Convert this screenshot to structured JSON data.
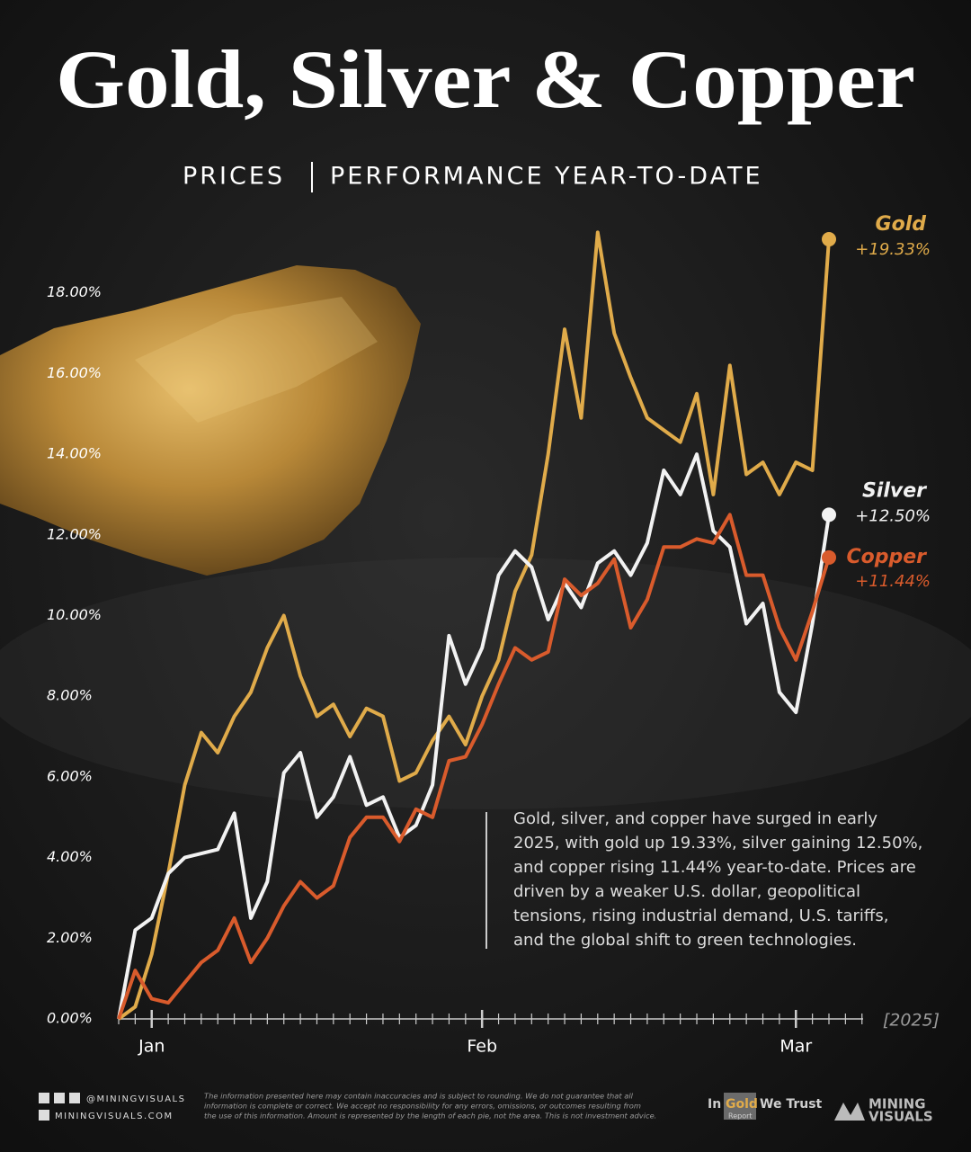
{
  "chart_data": {
    "type": "line",
    "title": "Gold, Silver & Copper",
    "subtitle": [
      "PRICES",
      "PERFORMANCE YEAR-TO-DATE"
    ],
    "categories": [
      null,
      null,
      "Jan",
      null,
      null,
      null,
      null,
      null,
      null,
      null,
      null,
      null,
      null,
      null,
      null,
      null,
      null,
      null,
      null,
      null,
      null,
      null,
      "Feb",
      null,
      null,
      null,
      null,
      null,
      null,
      null,
      null,
      null,
      null,
      null,
      null,
      null,
      null,
      null,
      null,
      null,
      null,
      "Mar",
      null,
      null
    ],
    "x_note": "[2025]",
    "ylim": [
      0,
      20
    ],
    "yticks": [
      {
        "value": 0,
        "label": "0.00%"
      },
      {
        "value": 2,
        "label": "2.00%"
      },
      {
        "value": 4,
        "label": "4.00%"
      },
      {
        "value": 6,
        "label": "6.00%"
      },
      {
        "value": 8,
        "label": "8.00%"
      },
      {
        "value": 10,
        "label": "10.00%"
      },
      {
        "value": 12,
        "label": "12.00%"
      },
      {
        "value": 14,
        "label": "14.00%"
      },
      {
        "value": 16,
        "label": "16.00%"
      },
      {
        "value": 18,
        "label": "18.00%"
      }
    ],
    "grid": false,
    "series": [
      {
        "name": "Gold",
        "color": "#e0ab4a",
        "values": [
          0,
          0.3,
          1.6,
          3.6,
          5.8,
          7.1,
          6.6,
          7.5,
          8.1,
          9.2,
          10.0,
          8.5,
          7.5,
          7.8,
          7.0,
          7.7,
          7.5,
          5.9,
          6.1,
          6.9,
          7.5,
          6.8,
          8.0,
          8.9,
          10.6,
          11.5,
          14.0,
          17.1,
          14.9,
          19.5,
          17.0,
          15.9,
          14.9,
          14.6,
          14.3,
          15.5,
          13.0,
          16.2,
          13.5,
          13.8,
          13.0,
          13.8,
          13.6,
          19.33
        ],
        "value_labels": [
          null,
          null,
          null,
          null,
          null,
          null,
          null,
          null,
          null,
          null,
          null,
          null,
          null,
          null,
          null,
          null,
          null,
          null,
          null,
          null,
          null,
          null,
          null,
          null,
          null,
          null,
          null,
          null,
          null,
          null,
          null,
          null,
          null,
          null,
          null,
          null,
          null,
          null,
          null,
          null,
          null,
          null,
          null,
          "+19.33%"
        ]
      },
      {
        "name": "Silver",
        "color": "#f2f2f2",
        "values": [
          0,
          2.2,
          2.5,
          3.6,
          4.0,
          4.1,
          4.2,
          5.1,
          2.5,
          3.4,
          6.1,
          6.6,
          5.0,
          5.5,
          6.5,
          5.3,
          5.5,
          4.5,
          4.8,
          5.8,
          9.5,
          8.3,
          9.2,
          11.0,
          11.6,
          11.2,
          9.9,
          10.8,
          10.2,
          11.3,
          11.6,
          11.0,
          11.8,
          13.6,
          13.0,
          14.0,
          12.1,
          11.7,
          9.8,
          10.3,
          8.1,
          7.6,
          9.8,
          12.5
        ],
        "value_labels": [
          null,
          null,
          null,
          null,
          null,
          null,
          null,
          null,
          null,
          null,
          null,
          null,
          null,
          null,
          null,
          null,
          null,
          null,
          null,
          null,
          null,
          null,
          null,
          null,
          null,
          null,
          null,
          null,
          null,
          null,
          null,
          null,
          null,
          null,
          null,
          null,
          null,
          null,
          null,
          null,
          null,
          null,
          null,
          "+12.50%"
        ]
      },
      {
        "name": "Copper",
        "color": "#d95b2c",
        "values": [
          0,
          1.2,
          0.5,
          0.4,
          0.9,
          1.4,
          1.7,
          2.5,
          1.4,
          2.0,
          2.8,
          3.4,
          3.0,
          3.3,
          4.5,
          5.0,
          5.0,
          4.4,
          5.2,
          5.0,
          6.4,
          6.5,
          7.3,
          8.3,
          9.2,
          8.9,
          9.1,
          10.9,
          10.5,
          10.8,
          11.4,
          9.7,
          10.4,
          11.7,
          11.7,
          11.9,
          11.8,
          12.5,
          11.0,
          11.0,
          9.7,
          8.9,
          10.1,
          11.44
        ],
        "value_labels": [
          null,
          null,
          null,
          null,
          null,
          null,
          null,
          null,
          null,
          null,
          null,
          null,
          null,
          null,
          null,
          null,
          null,
          null,
          null,
          null,
          null,
          null,
          null,
          null,
          null,
          null,
          null,
          null,
          null,
          null,
          null,
          null,
          null,
          null,
          null,
          null,
          null,
          null,
          null,
          null,
          null,
          null,
          null,
          "+11.44%"
        ]
      }
    ],
    "annotation": [
      "Gold, silver, and copper have surged in early",
      "2025, with gold up 19.33%, silver gaining 12.50%,",
      "and copper rising 11.44% year-to-date. Prices are",
      "driven by a weaker U.S. dollar, geopolitical",
      "tensions, rising industrial demand, U.S. tariffs,",
      "and the global shift to green technologies."
    ]
  },
  "footer": {
    "handle": "@MININGVISUALS",
    "website": "MININGVISUALS.COM",
    "disclaimer": [
      "The information presented here may contain inaccuracies and is subject to rounding. We do not guarantee that all",
      "information is complete or correct. We accept no responsibility for any errors, omissions, or outcomes resulting from",
      "the use of this information. Amount is represented by the length of each pie, not the area. This is not investment advice."
    ],
    "partner": [
      "In",
      "Gold",
      "We Trust",
      "Report"
    ],
    "brand": [
      "MINING",
      "VISUALS"
    ]
  }
}
